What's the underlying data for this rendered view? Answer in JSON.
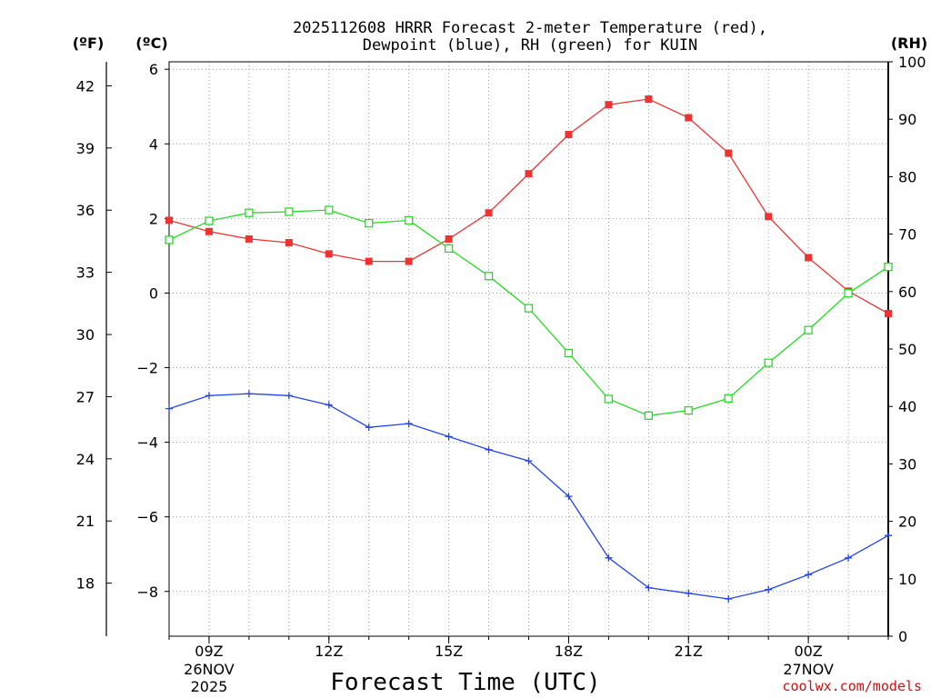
{
  "chart_data": {
    "type": "line",
    "title_line1": "2025112608 HRRR Forecast 2-meter Temperature (red),",
    "title_line2": "Dewpoint (blue), RH (green) for KUIN",
    "xlabel": "Forecast Time (UTC)",
    "credit": "coolwx.com/models",
    "unit_left_f": "(ºF)",
    "unit_left_c": "(ºC)",
    "unit_right_rh": "(RH)",
    "x_hours": [
      8,
      9,
      10,
      11,
      12,
      13,
      14,
      15,
      16,
      17,
      18,
      19,
      20,
      21,
      22,
      23,
      24,
      25,
      26
    ],
    "x_range": [
      8,
      26
    ],
    "x_ticks": [
      {
        "hour": 9,
        "label": "09Z",
        "sub1": "26NOV",
        "sub2": "2025"
      },
      {
        "hour": 12,
        "label": "12Z",
        "sub1": "",
        "sub2": ""
      },
      {
        "hour": 15,
        "label": "15Z",
        "sub1": "",
        "sub2": ""
      },
      {
        "hour": 18,
        "label": "18Z",
        "sub1": "",
        "sub2": ""
      },
      {
        "hour": 21,
        "label": "21Z",
        "sub1": "",
        "sub2": ""
      },
      {
        "hour": 24,
        "label": "00Z",
        "sub1": "27NOV",
        "sub2": ""
      }
    ],
    "c_range": [
      -9.2,
      6.2
    ],
    "c_ticks": [
      "6",
      "4",
      "2",
      "0",
      "−2",
      "−4",
      "−6",
      "−8"
    ],
    "c_tick_values": [
      6,
      4,
      2,
      0,
      -2,
      -4,
      -6,
      -8
    ],
    "f_ticks": [
      "42",
      "39",
      "36",
      "33",
      "30",
      "27",
      "24",
      "21",
      "18"
    ],
    "f_tick_values": [
      42,
      39,
      36,
      33,
      30,
      27,
      24,
      21,
      18
    ],
    "rh_range": [
      0,
      100
    ],
    "rh_ticks": [
      "100",
      "90",
      "80",
      "70",
      "60",
      "50",
      "40",
      "30",
      "20",
      "10",
      "0"
    ],
    "rh_tick_values": [
      100,
      90,
      80,
      70,
      60,
      50,
      40,
      30,
      20,
      10,
      0
    ],
    "series": [
      {
        "name": "2-meter Temperature",
        "axis": "celsius",
        "color": "#ee3333",
        "marker": "filled-square",
        "values": [
          1.95,
          1.65,
          1.45,
          1.35,
          1.05,
          0.85,
          0.85,
          1.45,
          2.15,
          3.2,
          4.25,
          5.05,
          5.2,
          4.7,
          3.75,
          2.05,
          0.95,
          0.05,
          -0.55
        ]
      },
      {
        "name": "Dewpoint",
        "axis": "celsius",
        "color": "#2244ee",
        "marker": "plus",
        "values": [
          -3.1,
          -2.75,
          -2.7,
          -2.75,
          -3.0,
          -3.6,
          -3.5,
          -3.85,
          -4.2,
          -4.5,
          -5.45,
          -7.1,
          -7.9,
          -8.05,
          -8.2,
          -7.95,
          -7.55,
          -7.1,
          -6.5
        ]
      },
      {
        "name": "RH",
        "axis": "rh",
        "color": "#22dd22",
        "marker": "open-square",
        "values": [
          69.0,
          72.3,
          73.7,
          73.9,
          74.2,
          71.9,
          72.4,
          67.5,
          62.7,
          57.1,
          49.3,
          41.3,
          38.4,
          39.3,
          41.4,
          47.6,
          53.3,
          59.7,
          64.3
        ]
      }
    ]
  }
}
